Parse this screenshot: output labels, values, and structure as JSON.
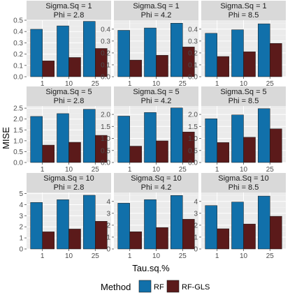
{
  "chart_data": {
    "type": "bar",
    "xlabel": "Tau.sq.%",
    "ylabel": "MISE",
    "categories": [
      "1",
      "10",
      "25"
    ],
    "legend": {
      "title": "Method",
      "position": "bottom",
      "items": [
        {
          "name": "RF",
          "color": "#1170aa"
        },
        {
          "name": "RF-GLS",
          "color": "#5b1a1a"
        }
      ]
    },
    "panels": [
      {
        "strip": [
          "Sigma.Sq = 1",
          "Phi = 2.8"
        ],
        "ylim": [
          0,
          0.5
        ],
        "ticks": [
          0,
          0.1,
          0.2,
          0.3,
          0.4,
          0.5
        ],
        "tick_labels": [
          "0.0",
          "0.1",
          "0.2",
          "0.3",
          "0.4",
          "0.5"
        ],
        "series": [
          {
            "name": "RF",
            "values": [
              0.42,
              0.45,
              0.49
            ]
          },
          {
            "name": "RF-GLS",
            "values": [
              0.14,
              0.17,
              0.25
            ]
          }
        ]
      },
      {
        "strip": [
          "Sigma.Sq = 1",
          "Phi = 4.2"
        ],
        "ylim": [
          0,
          0.475
        ],
        "ticks": [
          0,
          0.1,
          0.2,
          0.3,
          0.4
        ],
        "tick_labels": [
          "0.0",
          "0.1",
          "0.2",
          "0.3",
          "0.4"
        ],
        "series": [
          {
            "name": "RF",
            "values": [
              0.39,
              0.41,
              0.45
            ]
          },
          {
            "name": "RF-GLS",
            "values": [
              0.14,
              0.18,
              0.25
            ]
          }
        ]
      },
      {
        "strip": [
          "Sigma.Sq = 1",
          "Phi = 8.5"
        ],
        "ylim": [
          0,
          0.475
        ],
        "ticks": [
          0,
          0.1,
          0.2,
          0.3,
          0.4
        ],
        "tick_labels": [
          "0.0",
          "0.1",
          "0.2",
          "0.3",
          "0.4"
        ],
        "series": [
          {
            "name": "RF",
            "values": [
              0.365,
              0.395,
              0.445
            ]
          },
          {
            "name": "RF-GLS",
            "values": [
              0.17,
              0.21,
              0.28
            ]
          }
        ]
      },
      {
        "strip": [
          "Sigma.Sq = 5",
          "Phi = 2.8"
        ],
        "ylim": [
          0,
          2.6
        ],
        "ticks": [
          0,
          0.5,
          1,
          1.5,
          2,
          2.5
        ],
        "tick_labels": [
          "0.0",
          "0.5",
          "1.0",
          "1.5",
          "2.0",
          "2.5"
        ],
        "series": [
          {
            "name": "RF",
            "values": [
              2.12,
              2.25,
              2.45
            ]
          },
          {
            "name": "RF-GLS",
            "values": [
              0.8,
              0.93,
              1.25
            ]
          }
        ]
      },
      {
        "strip": [
          "Sigma.Sq = 5",
          "Phi = 4.2"
        ],
        "ylim": [
          0,
          2.35
        ],
        "ticks": [
          0,
          0.5,
          1,
          1.5,
          2
        ],
        "tick_labels": [
          "0.0",
          "0.5",
          "1.0",
          "1.5",
          "2.0"
        ],
        "series": [
          {
            "name": "RF",
            "values": [
              1.93,
              2.08,
              2.27
            ]
          },
          {
            "name": "RF-GLS",
            "values": [
              0.68,
              0.9,
              1.27
            ]
          }
        ]
      },
      {
        "strip": [
          "Sigma.Sq = 5",
          "Phi = 8.5"
        ],
        "ylim": [
          0,
          2.35
        ],
        "ticks": [
          0,
          0.5,
          1,
          1.5,
          2
        ],
        "tick_labels": [
          "0.0",
          "0.5",
          "1.0",
          "1.5",
          "2.0"
        ],
        "series": [
          {
            "name": "RF",
            "values": [
              1.82,
              1.98,
              2.24
            ]
          },
          {
            "name": "RF-GLS",
            "values": [
              0.83,
              1.05,
              1.4
            ]
          }
        ]
      },
      {
        "strip": [
          "Sigma.Sq = 10",
          "Phi = 2.8"
        ],
        "ylim": [
          0,
          5.1
        ],
        "ticks": [
          0,
          1,
          2,
          3,
          4,
          5
        ],
        "tick_labels": [
          "0",
          "1",
          "2",
          "3",
          "4",
          "5"
        ],
        "series": [
          {
            "name": "RF",
            "values": [
              4.2,
              4.45,
              4.85
            ]
          },
          {
            "name": "RF-GLS",
            "values": [
              1.55,
              1.8,
              2.5
            ]
          }
        ]
      },
      {
        "strip": [
          "Sigma.Sq = 10",
          "Phi = 4.2"
        ],
        "ylim": [
          0,
          4.75
        ],
        "ticks": [
          0,
          1,
          2,
          3,
          4
        ],
        "tick_labels": [
          "0",
          "1",
          "2",
          "3",
          "4"
        ],
        "series": [
          {
            "name": "RF",
            "values": [
              3.85,
              4.15,
              4.5
            ]
          },
          {
            "name": "RF-GLS",
            "values": [
              1.45,
              1.8,
              2.5
            ]
          }
        ]
      },
      {
        "strip": [
          "Sigma.Sq = 10",
          "Phi = 8.5"
        ],
        "ylim": [
          0,
          4.75
        ],
        "ticks": [
          0,
          1,
          2,
          3,
          4
        ],
        "tick_labels": [
          "0",
          "1",
          "2",
          "3",
          "4"
        ],
        "series": [
          {
            "name": "RF",
            "values": [
              3.65,
              3.95,
              4.45
            ]
          },
          {
            "name": "RF-GLS",
            "values": [
              1.7,
              2.1,
              2.75
            ]
          }
        ]
      }
    ]
  }
}
